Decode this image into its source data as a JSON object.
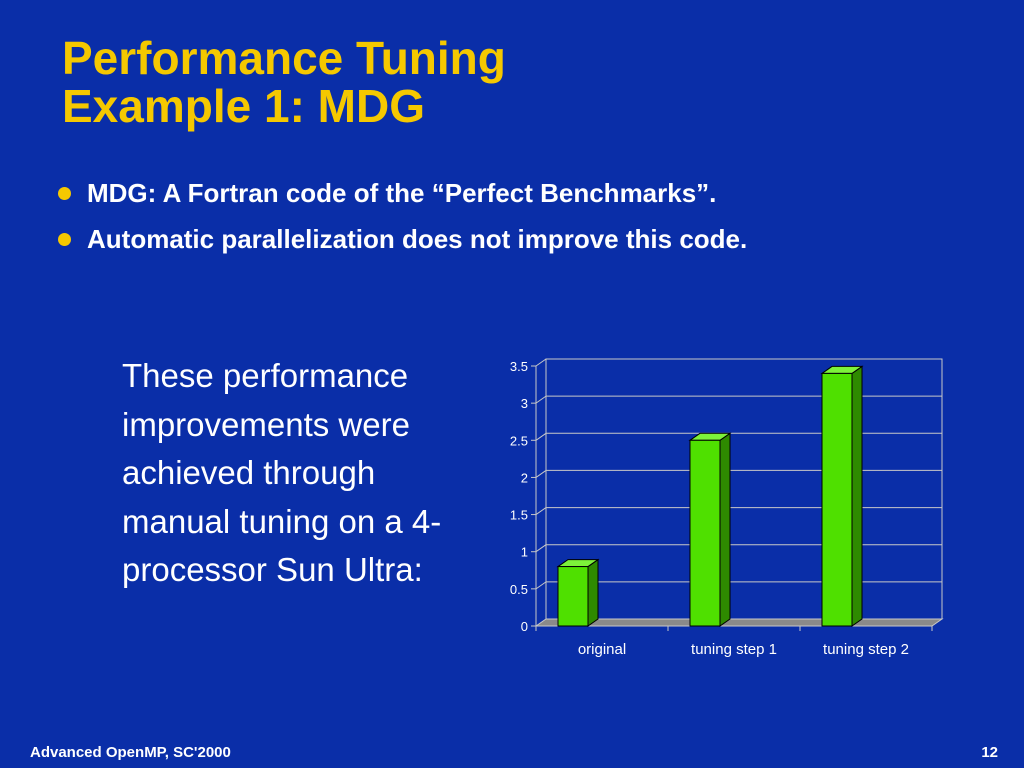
{
  "slide": {
    "title_lines": [
      "Performance Tuning",
      "Example 1: MDG"
    ],
    "bullets": [
      "MDG: A Fortran code of the “Perfect Benchmarks”.",
      "Automatic parallelization does not improve this code."
    ],
    "side_text": "These performance improvements were achieved through manual tuning on a 4-processor Sun Ultra:",
    "footer_left": "Advanced OpenMP, SC'2000",
    "page_number": "12"
  },
  "colors": {
    "background": "#0a2ea8",
    "title": "#f5c800",
    "bar_front": "#4fe000",
    "bar_side": "#2e8a00",
    "bar_top": "#7df23a",
    "plot_bg": "#0a2ea8"
  },
  "chart_data": {
    "type": "bar",
    "title": "",
    "xlabel": "",
    "ylabel": "",
    "categories": [
      "original",
      "tuning step 1",
      "tuning step 2"
    ],
    "values": [
      0.8,
      2.5,
      3.4
    ],
    "ylim": [
      0,
      3.5
    ],
    "yticks": [
      "0",
      "0.5",
      "1",
      "1.5",
      "2",
      "2.5",
      "3",
      "3.5"
    ],
    "grid": true,
    "legend": "none",
    "style": "3d"
  }
}
